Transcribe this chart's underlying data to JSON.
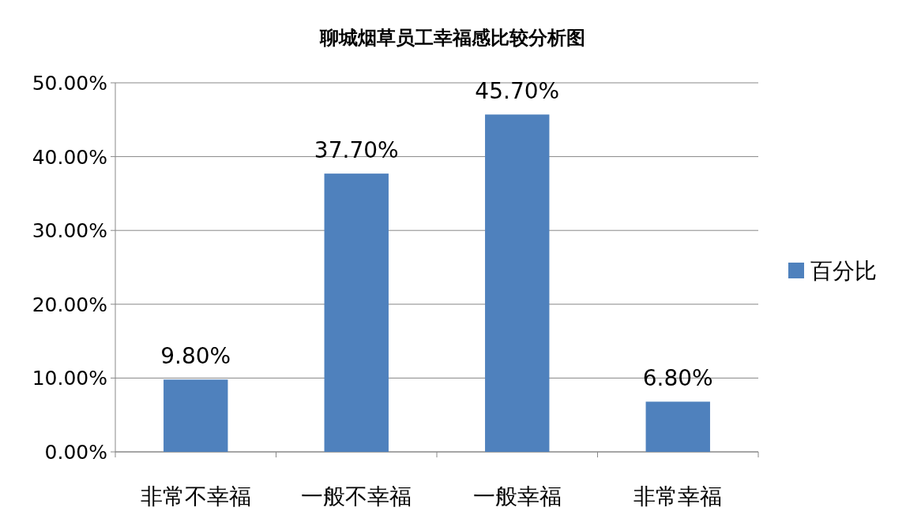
{
  "chart_data": {
    "type": "bar",
    "title": "聊城烟草员工幸福感比较分析图",
    "categories": [
      "非常不幸福",
      "一般不幸福",
      "一般幸福",
      "非常幸福"
    ],
    "series": [
      {
        "name": "百分比",
        "color": "#4f81bd",
        "values": [
          9.8,
          37.7,
          45.7,
          6.8
        ],
        "value_labels": [
          "9.80%",
          "37.70%",
          "45.70%",
          "6.80%"
        ]
      }
    ],
    "ylim": [
      0,
      50
    ],
    "yticks": [
      {
        "value": 0,
        "label": "0.00%"
      },
      {
        "value": 10,
        "label": "10.00%"
      },
      {
        "value": 20,
        "label": "20.00%"
      },
      {
        "value": 30,
        "label": "30.00%"
      },
      {
        "value": 40,
        "label": "40.00%"
      },
      {
        "value": 50,
        "label": "50.00%"
      }
    ],
    "grid": "y",
    "legend": "right"
  }
}
